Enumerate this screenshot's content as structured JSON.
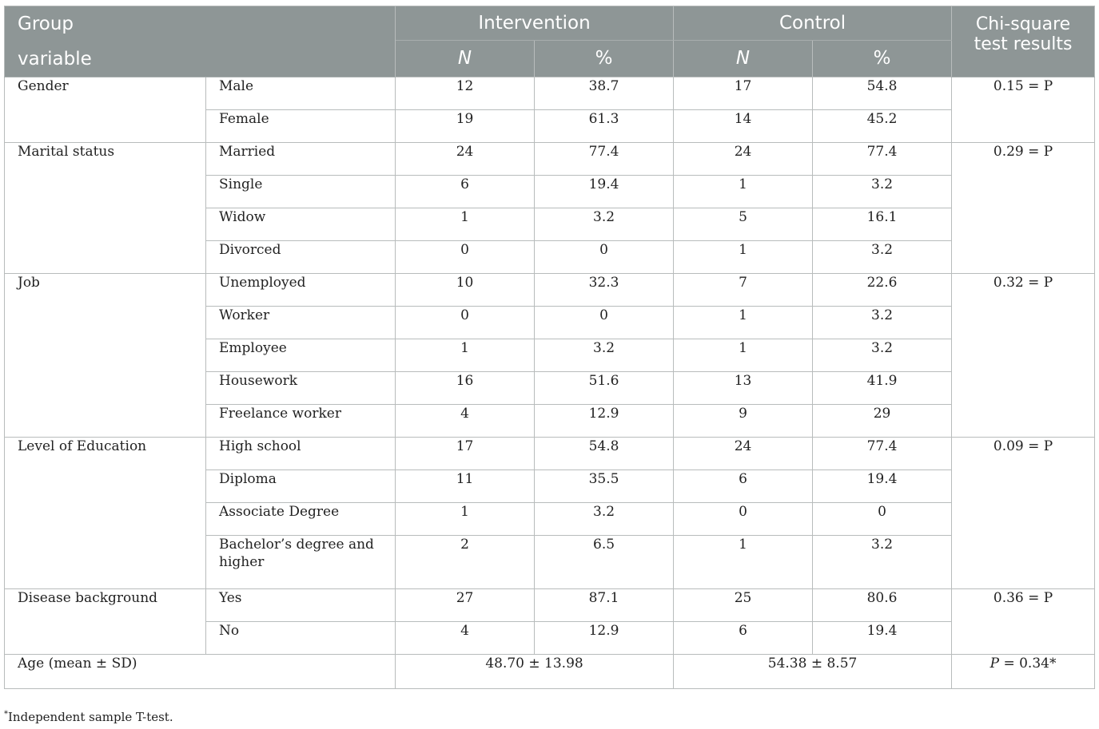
{
  "header": {
    "group_variable_line1": "Group",
    "group_variable_line2": "variable",
    "intervention": "Intervention",
    "control": "Control",
    "chi_line1": "Chi-square",
    "chi_line2": "test results",
    "n": "N",
    "pct": "%"
  },
  "sections": [
    {
      "variable": "Gender",
      "result": "0.15 = P",
      "rows": [
        {
          "category": "Male",
          "int_n": "12",
          "int_pct": "38.7",
          "ctl_n": "17",
          "ctl_pct": "54.8"
        },
        {
          "category": "Female",
          "int_n": "19",
          "int_pct": "61.3",
          "ctl_n": "14",
          "ctl_pct": "45.2"
        }
      ]
    },
    {
      "variable": "Marital status",
      "result": "0.29 = P",
      "rows": [
        {
          "category": "Married",
          "int_n": "24",
          "int_pct": "77.4",
          "ctl_n": "24",
          "ctl_pct": "77.4"
        },
        {
          "category": "Single",
          "int_n": "6",
          "int_pct": "19.4",
          "ctl_n": "1",
          "ctl_pct": "3.2"
        },
        {
          "category": "Widow",
          "int_n": "1",
          "int_pct": "3.2",
          "ctl_n": "5",
          "ctl_pct": "16.1"
        },
        {
          "category": "Divorced",
          "int_n": "0",
          "int_pct": "0",
          "ctl_n": "1",
          "ctl_pct": "3.2"
        }
      ]
    },
    {
      "variable": "Job",
      "result": "0.32 = P",
      "rows": [
        {
          "category": "Unemployed",
          "int_n": "10",
          "int_pct": "32.3",
          "ctl_n": "7",
          "ctl_pct": "22.6"
        },
        {
          "category": "Worker",
          "int_n": "0",
          "int_pct": "0",
          "ctl_n": "1",
          "ctl_pct": "3.2"
        },
        {
          "category": "Employee",
          "int_n": "1",
          "int_pct": "3.2",
          "ctl_n": "1",
          "ctl_pct": "3.2"
        },
        {
          "category": "Housework",
          "int_n": "16",
          "int_pct": "51.6",
          "ctl_n": "13",
          "ctl_pct": "41.9"
        },
        {
          "category": "Freelance worker",
          "int_n": "4",
          "int_pct": "12.9",
          "ctl_n": "9",
          "ctl_pct": "29"
        }
      ]
    },
    {
      "variable": "Level of Education",
      "result": "0.09 = P",
      "rows": [
        {
          "category": "High school",
          "int_n": "17",
          "int_pct": "54.8",
          "ctl_n": "24",
          "ctl_pct": "77.4"
        },
        {
          "category": "Diploma",
          "int_n": "11",
          "int_pct": "35.5",
          "ctl_n": "6",
          "ctl_pct": "19.4"
        },
        {
          "category": "Associate Degree",
          "int_n": "1",
          "int_pct": "3.2",
          "ctl_n": "0",
          "ctl_pct": "0"
        },
        {
          "category": "Bachelor’s degree and higher",
          "int_n": "2",
          "int_pct": "6.5",
          "ctl_n": "1",
          "ctl_pct": "3.2"
        }
      ]
    },
    {
      "variable": "Disease background",
      "result": "0.36 = P",
      "rows": [
        {
          "category": "Yes",
          "int_n": "27",
          "int_pct": "87.1",
          "ctl_n": "25",
          "ctl_pct": "80.6"
        },
        {
          "category": "No",
          "int_n": "4",
          "int_pct": "12.9",
          "ctl_n": "6",
          "ctl_pct": "19.4"
        }
      ]
    }
  ],
  "age_row": {
    "label": "Age (mean ± SD)",
    "intervention": "48.70 ± 13.98",
    "control": "54.38 ± 8.57",
    "result_p": "P",
    "result_rest": " = 0.34*"
  },
  "footnote": {
    "mark": "*",
    "text": "Independent sample T-test."
  },
  "colors": {
    "header_bg": "#8e9696",
    "header_text": "#ffffff",
    "border": "#b8bcbc"
  }
}
